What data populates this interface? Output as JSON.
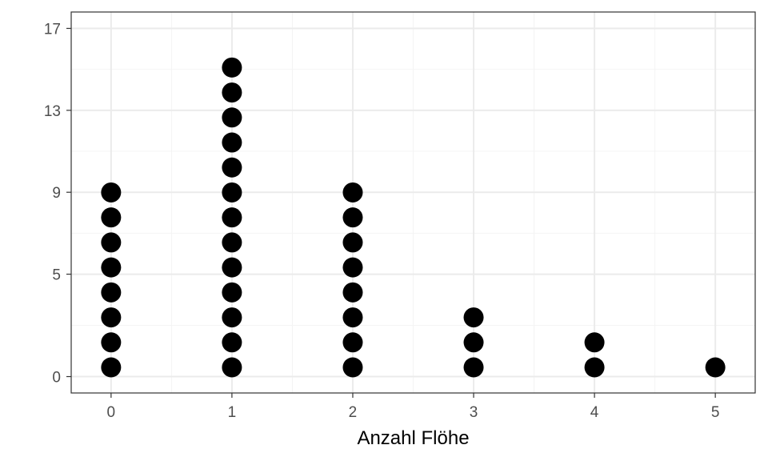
{
  "chart_data": {
    "type": "dot",
    "title": "",
    "xlabel": "Anzahl Flöhe",
    "ylabel": "",
    "xlim": [
      -0.33,
      5.33
    ],
    "ylim": [
      -0.8,
      17.8
    ],
    "x_ticks": [
      0,
      1,
      2,
      3,
      4,
      5
    ],
    "y_ticks": [
      0,
      5,
      9,
      13,
      17
    ],
    "grid": true,
    "legend": "none",
    "x": [
      0,
      1,
      2,
      3,
      4,
      5
    ],
    "counts": [
      8,
      13,
      8,
      3,
      2,
      1
    ]
  },
  "colors": {
    "background": "#ffffff",
    "panel_border": "#333333",
    "grid_major": "#ebebeb",
    "grid_minor": "#f4f4f4",
    "dot": "#000000",
    "tick_text": "#4d4d4d",
    "axis_title": "#000000"
  }
}
